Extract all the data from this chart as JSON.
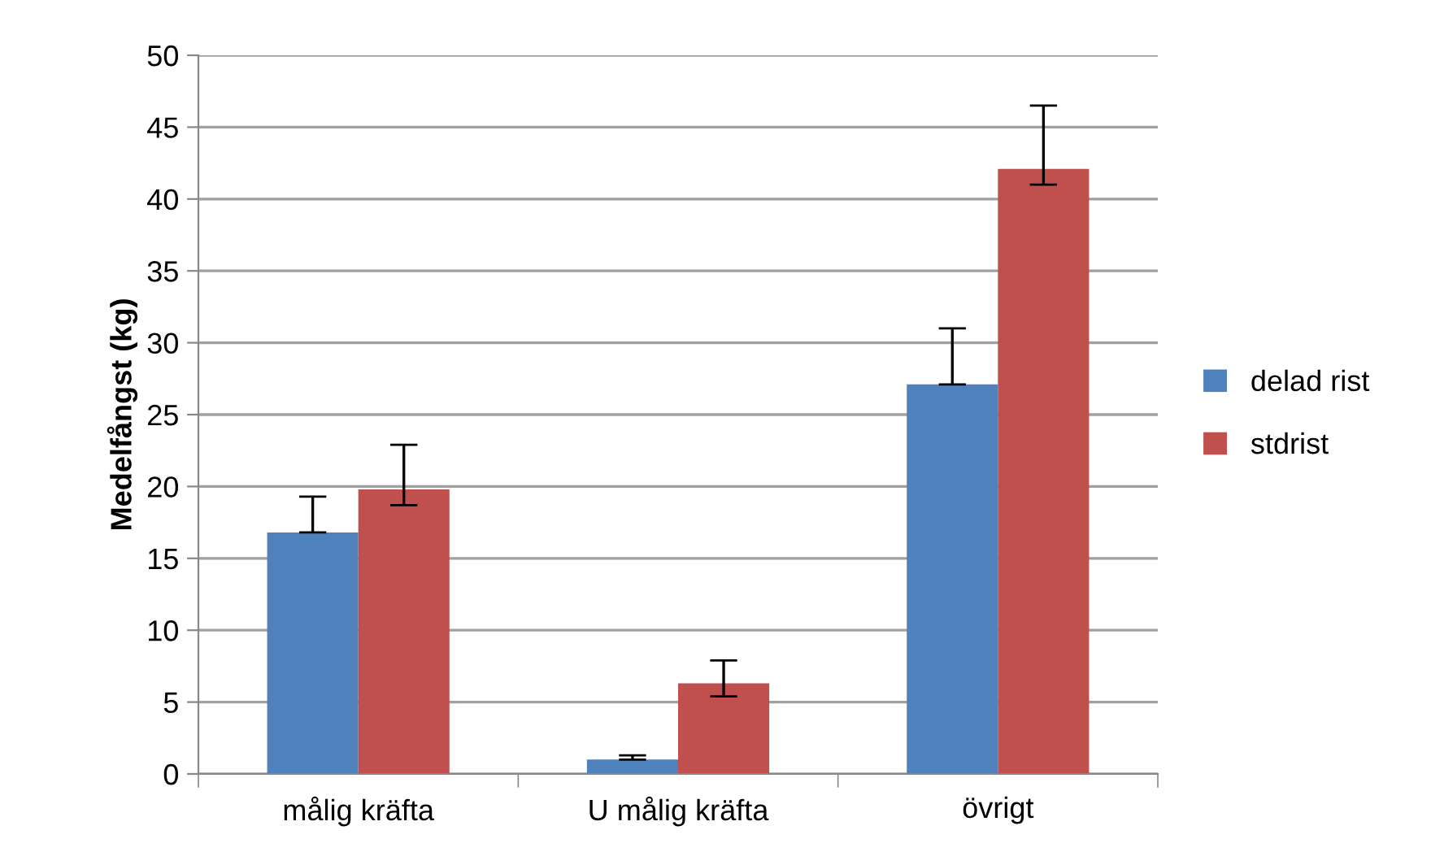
{
  "chart_data": {
    "type": "bar",
    "ylabel": "Medelfångst (kg)",
    "categories": [
      "målig kräfta",
      "U målig kräfta",
      "övrigt"
    ],
    "series": [
      {
        "name": "delad rist",
        "color": "#4f81bd",
        "values": [
          16.8,
          1.0,
          27.1
        ],
        "errors": [
          [
            16.8,
            19.3
          ],
          [
            1.0,
            1.3
          ],
          [
            27.1,
            31.0
          ]
        ]
      },
      {
        "name": "stdrist",
        "color": "#c0504d",
        "values": [
          19.8,
          6.3,
          42.1
        ],
        "errors": [
          [
            18.7,
            22.9
          ],
          [
            5.4,
            7.9
          ],
          [
            41.0,
            46.5
          ]
        ]
      }
    ],
    "ylim": [
      0,
      50
    ],
    "yticks": [
      0,
      5,
      10,
      15,
      20,
      25,
      30,
      35,
      40,
      45,
      50
    ],
    "grid": "y",
    "legend": "right"
  }
}
